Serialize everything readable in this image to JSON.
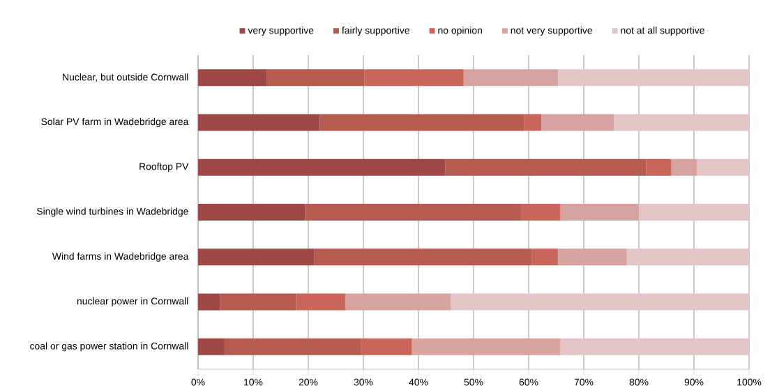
{
  "chart_data": {
    "type": "bar",
    "orientation": "horizontal",
    "stacked": true,
    "categories": [
      "Nuclear, but outside Cornwall",
      "Solar PV farm in Wadebridge area",
      "Rooftop PV",
      "Single wind turbines in Wadebridge",
      "Wind farms in Wadebridge area",
      "nuclear power in Cornwall",
      "coal or gas power station in Cornwall"
    ],
    "series": [
      {
        "name": "very supportive",
        "color": "#9e4846",
        "values": [
          12.5,
          22.1,
          44.9,
          19.4,
          21.1,
          4.0,
          4.8
        ]
      },
      {
        "name": "fairly supportive",
        "color": "#b75a50",
        "values": [
          17.7,
          37.1,
          36.4,
          39.2,
          39.5,
          13.8,
          24.8
        ]
      },
      {
        "name": "no opinion",
        "color": "#c9655b",
        "values": [
          18.0,
          3.1,
          4.6,
          7.1,
          4.7,
          8.9,
          9.2
        ]
      },
      {
        "name": "not very supportive",
        "color": "#d6a3a1",
        "values": [
          17.1,
          13.2,
          4.6,
          14.3,
          12.5,
          19.2,
          26.9
        ]
      },
      {
        "name": "not at all supportive",
        "color": "#e3c5c5",
        "values": [
          34.7,
          24.5,
          9.5,
          20.0,
          22.2,
          54.1,
          34.3
        ]
      }
    ],
    "xlim": [
      0,
      100
    ],
    "xticks": [
      {
        "value": 0,
        "label": "0%"
      },
      {
        "value": 10,
        "label": "10%"
      },
      {
        "value": 20,
        "label": "20%"
      },
      {
        "value": 30,
        "label": "30%"
      },
      {
        "value": 40,
        "label": "40%"
      },
      {
        "value": 50,
        "label": "50%"
      },
      {
        "value": 60,
        "label": "60%"
      },
      {
        "value": 70,
        "label": "70%"
      },
      {
        "value": 80,
        "label": "80%"
      },
      {
        "value": 90,
        "label": "90%"
      },
      {
        "value": 100,
        "label": "100%"
      }
    ],
    "grid": "x",
    "legend": "top"
  }
}
